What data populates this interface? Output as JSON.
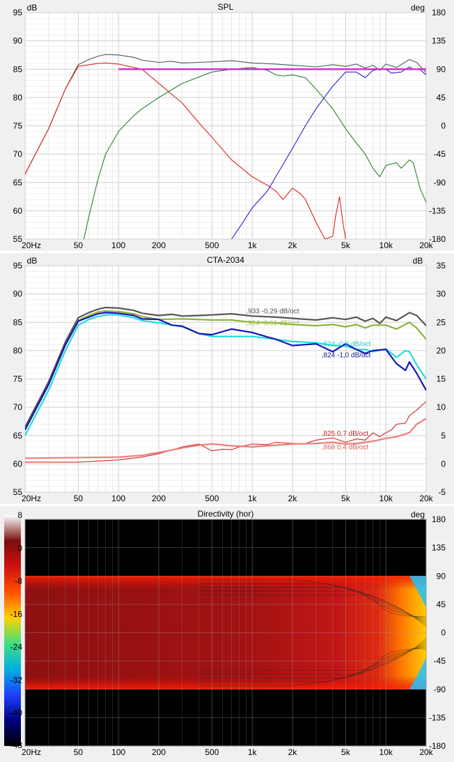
{
  "chart_data": [
    {
      "type": "line",
      "title": "SPL",
      "left_unit": "dB",
      "right_unit": "deg",
      "xscale": "log",
      "xlim": [
        20,
        20000
      ],
      "ylim": [
        55,
        95
      ],
      "y2lim": [
        -180,
        180
      ],
      "grid": true,
      "x_tick_labels": [
        "20Hz",
        "50",
        "100",
        "200",
        "500",
        "1k",
        "2k",
        "5k",
        "10k",
        "20k"
      ],
      "y_tick_labels": [
        "55",
        "60",
        "65",
        "70",
        "75",
        "80",
        "85",
        "90",
        "95"
      ],
      "y2_tick_labels": [
        "-180",
        "-135",
        "-90",
        "-45",
        "0",
        "45",
        "90",
        "135",
        "180"
      ],
      "series": [
        {
          "color": "#555555",
          "x": [
            20,
            30,
            40,
            50,
            60,
            70,
            80,
            100,
            130,
            150,
            200,
            250,
            300,
            400,
            500,
            700,
            1000,
            1500,
            2000,
            3000,
            4000,
            5000,
            6000,
            7000,
            8000,
            9000,
            10000,
            12000,
            15000,
            17000,
            20000
          ],
          "y": [
            66.5,
            74.5,
            81.5,
            85.8,
            86.7,
            87.3,
            87.6,
            87.5,
            87.1,
            86.6,
            86.2,
            86.4,
            86.1,
            86.2,
            86.3,
            86.5,
            86.1,
            85.9,
            85.7,
            85.4,
            85.8,
            85.5,
            85.9,
            85.2,
            85.7,
            84.8,
            85.9,
            85.3,
            86.7,
            86.2,
            84.4
          ]
        },
        {
          "color": "#dd2222",
          "x": [
            20,
            30,
            40,
            50,
            60,
            70,
            80,
            100,
            150,
            200,
            300,
            400,
            500,
            700,
            1000,
            1300,
            1500,
            1700,
            2000,
            2300,
            2500,
            3000,
            3500,
            4000,
            4200,
            4500,
            4800,
            5000
          ],
          "y": [
            66.5,
            74.5,
            81.5,
            85.5,
            85.8,
            86.0,
            86.1,
            85.9,
            85.0,
            82.5,
            79.0,
            75.5,
            73.0,
            69.0,
            66.0,
            64.5,
            63.5,
            62.0,
            64.0,
            63.0,
            62.0,
            58.0,
            55.0,
            55.5,
            59.0,
            62.5,
            57.5,
            55.0
          ]
        },
        {
          "color": "#2e7d2e",
          "x": [
            55,
            60,
            70,
            80,
            100,
            130,
            150,
            200,
            300,
            500,
            700,
            1000,
            1300,
            1500,
            1700,
            2000,
            2500,
            3000,
            4000,
            5000,
            6000,
            7000,
            8000,
            9000,
            10000,
            12000,
            13000,
            15000,
            16000,
            18000,
            20000
          ],
          "y": [
            55.0,
            59.0,
            65.5,
            70.0,
            74.0,
            76.8,
            78.0,
            80.0,
            82.5,
            84.5,
            85.0,
            85.3,
            84.8,
            84.0,
            83.8,
            84.0,
            83.5,
            81.5,
            78.0,
            74.5,
            72.0,
            70.0,
            67.5,
            66.0,
            68.0,
            68.5,
            67.5,
            69.0,
            68.5,
            64.0,
            61.5
          ]
        },
        {
          "color": "#2222cc",
          "x": [
            700,
            800,
            1000,
            1300,
            1500,
            2000,
            2500,
            3000,
            4000,
            5000,
            6000,
            7000,
            8000,
            9000,
            10000,
            11000,
            13000,
            15000,
            16000,
            18000,
            20000
          ],
          "y": [
            55.0,
            57.0,
            60.5,
            63.5,
            66.0,
            71.0,
            75.0,
            78.0,
            82.0,
            84.5,
            84.5,
            83.5,
            84.8,
            85.0,
            85.0,
            84.3,
            84.5,
            85.4,
            85.0,
            84.9,
            84.0
          ]
        },
        {
          "color": "#cc33cc",
          "x": [
            100,
            20000
          ],
          "y": [
            85.0,
            85.0
          ]
        }
      ]
    },
    {
      "type": "line",
      "title": "CTA-2034",
      "left_unit": "dB",
      "right_unit": "dB",
      "xscale": "log",
      "xlim": [
        20,
        20000
      ],
      "ylim": [
        55,
        95
      ],
      "y2lim": [
        -5,
        35
      ],
      "grid": true,
      "x_tick_labels": [
        "20Hz",
        "50",
        "100",
        "200",
        "500",
        "1k",
        "2k",
        "5k",
        "10k",
        "20k"
      ],
      "y_tick_labels": [
        "55",
        "60",
        "65",
        "70",
        "75",
        "80",
        "85",
        "90",
        "95"
      ],
      "y2_tick_labels": [
        "-5",
        "0",
        "5",
        "10",
        "15",
        "20",
        "25",
        "30",
        "35"
      ],
      "annotations": [
        {
          "text": ",933 -0,29 dB/oct",
          "color": "#555555",
          "x": 900,
          "y": 86.6
        },
        {
          "text": ",914 -0,51 dB/oct",
          "color": "#9fbf3f",
          "x": 900,
          "y": 84.5
        },
        {
          "text": ",824 -0,9 dB/oct",
          "color": "#22cccc",
          "x": 3300,
          "y": 80.8
        },
        {
          "text": ",824 -1,0 dB/oct",
          "color": "#1a1a8c",
          "x": 3300,
          "y": 78.8
        },
        {
          "text": ",825 0,7 dB/oct",
          "color": "#cc2222",
          "x": 3300,
          "y": 65.0
        },
        {
          "text": ",868 0,4 dB/oct",
          "color": "#e06060",
          "x": 3300,
          "y": 62.6
        }
      ],
      "series": [
        {
          "color": "#555555",
          "x": [
            20,
            30,
            40,
            50,
            60,
            70,
            80,
            100,
            130,
            150,
            200,
            250,
            300,
            400,
            500,
            700,
            1000,
            1500,
            2000,
            3000,
            4000,
            5000,
            6000,
            7000,
            8000,
            9000,
            10000,
            12000,
            15000,
            17000,
            20000
          ],
          "y": [
            66.5,
            74.5,
            81.5,
            85.8,
            86.7,
            87.3,
            87.6,
            87.5,
            87.1,
            86.6,
            86.2,
            86.4,
            86.1,
            86.2,
            86.3,
            86.5,
            86.1,
            85.9,
            85.7,
            85.4,
            85.8,
            85.5,
            85.9,
            85.2,
            85.7,
            84.8,
            85.9,
            85.3,
            86.7,
            86.2,
            84.4
          ]
        },
        {
          "color": "#8db33a",
          "x": [
            20,
            30,
            40,
            50,
            60,
            70,
            80,
            100,
            130,
            150,
            200,
            300,
            500,
            700,
            1000,
            1500,
            2000,
            3000,
            4000,
            5000,
            6000,
            7000,
            8000,
            10000,
            12000,
            15000,
            17000,
            20000
          ],
          "y": [
            66.0,
            74.0,
            81.0,
            85.3,
            86.2,
            86.8,
            87.0,
            86.9,
            86.5,
            86.0,
            85.5,
            85.6,
            85.4,
            85.4,
            85.0,
            84.9,
            84.6,
            84.4,
            84.6,
            84.2,
            84.6,
            84.0,
            84.5,
            84.5,
            83.8,
            85.0,
            84.0,
            82.0
          ]
        },
        {
          "color": "#22dddd",
          "x": [
            20,
            30,
            40,
            50,
            60,
            70,
            80,
            100,
            130,
            150,
            200,
            300,
            400,
            500,
            700,
            1000,
            1500,
            2000,
            3000,
            4000,
            5000,
            6000,
            7000,
            8000,
            10000,
            12000,
            14000,
            15000,
            17000,
            20000
          ],
          "y": [
            65.0,
            73.0,
            80.0,
            84.5,
            85.5,
            86.0,
            86.3,
            86.3,
            85.8,
            85.3,
            84.9,
            84.2,
            83.0,
            82.5,
            82.5,
            82.5,
            82.0,
            81.6,
            81.4,
            80.9,
            80.8,
            80.2,
            80.2,
            79.8,
            80.3,
            78.8,
            80.0,
            79.8,
            77.5,
            75.0
          ]
        },
        {
          "color": "#1515b5",
          "x": [
            20,
            30,
            40,
            50,
            60,
            70,
            80,
            100,
            130,
            150,
            200,
            250,
            300,
            400,
            500,
            700,
            1000,
            1300,
            1500,
            2000,
            3000,
            4000,
            5000,
            6000,
            7000,
            8000,
            10000,
            12000,
            14000,
            15000,
            17000,
            20000
          ],
          "y": [
            66.0,
            74.0,
            81.0,
            85.2,
            85.9,
            86.5,
            86.7,
            86.6,
            86.2,
            85.6,
            85.5,
            84.5,
            84.3,
            83.0,
            82.8,
            83.8,
            83.2,
            82.4,
            82.0,
            80.9,
            81.2,
            79.8,
            81.2,
            80.2,
            79.5,
            80.0,
            80.2,
            77.7,
            76.5,
            78.0,
            76.0,
            73.0
          ]
        },
        {
          "color": "#dd2222",
          "y_axis": "right",
          "x": [
            20,
            50,
            100,
            150,
            200,
            300,
            400,
            500,
            600,
            700,
            800,
            1000,
            1300,
            1500,
            2000,
            2500,
            3000,
            4000,
            5000,
            6000,
            7000,
            8000,
            9000,
            10000,
            11000,
            12000,
            14000,
            15000,
            17000,
            20000
          ],
          "y": [
            0.3,
            0.3,
            0.7,
            1.2,
            1.8,
            3.0,
            3.5,
            2.3,
            2.6,
            2.5,
            3.0,
            3.5,
            3.4,
            3.8,
            3.6,
            3.6,
            4.2,
            4.6,
            3.8,
            4.4,
            4.2,
            5.5,
            4.8,
            5.5,
            6.0,
            7.0,
            7.2,
            8.5,
            9.5,
            11.0
          ]
        },
        {
          "color": "#ea8080",
          "y_axis": "right",
          "x": [
            20,
            50,
            100,
            150,
            200,
            300,
            400,
            500,
            700,
            1000,
            1500,
            2000,
            3000,
            4000,
            5000,
            6000,
            7000,
            8000,
            10000,
            12000,
            15000,
            17000,
            20000
          ],
          "y": [
            1.0,
            1.1,
            1.2,
            1.5,
            2.0,
            2.8,
            3.3,
            3.5,
            3.2,
            3.0,
            3.3,
            3.5,
            3.6,
            3.8,
            3.5,
            3.6,
            3.8,
            4.0,
            4.5,
            4.8,
            5.5,
            7.0,
            8.0
          ]
        }
      ]
    },
    {
      "type": "heatmap",
      "title": "Directivity (hor)",
      "right_unit": "deg",
      "xscale": "log",
      "xlim": [
        20,
        20000
      ],
      "ylim": [
        -180,
        180
      ],
      "colorbar_lim": [
        -48,
        8
      ],
      "x_tick_labels": [
        "20Hz",
        "50",
        "100",
        "200",
        "500",
        "1k",
        "2k",
        "5k",
        "10k",
        "20k"
      ],
      "y_tick_labels": [
        "-180",
        "-135",
        "-90",
        "-45",
        "0",
        "45",
        "90",
        "135",
        "180"
      ],
      "colorbar_tick_labels": [
        "8",
        "0",
        "-8",
        "-16",
        "-24",
        "-32",
        "-40",
        "-48"
      ],
      "coverage_deg": [
        -90,
        90
      ],
      "colorbar_colors": [
        "#ffffff",
        "#7a1010",
        "#d01010",
        "#ff5000",
        "#ffd000",
        "#40e080",
        "#00b0e0",
        "#2040ff",
        "#000080",
        "#000000"
      ]
    }
  ]
}
